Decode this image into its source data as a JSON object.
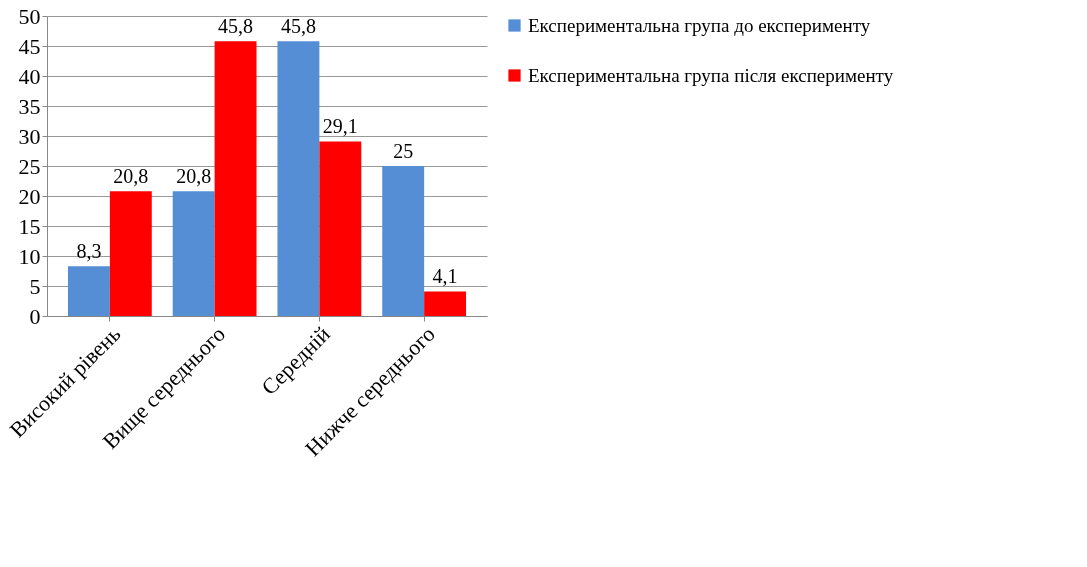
{
  "chart_data": {
    "type": "bar",
    "categories": [
      "Високий рівень",
      "Вище середнього",
      "Середній",
      "Нижче середнього"
    ],
    "series": [
      {
        "name": "Експериментальна група до експерименту",
        "color": "#558ed5",
        "values": [
          8.3,
          20.8,
          45.8,
          25
        ],
        "value_labels": [
          "8,3",
          "20,8",
          "45,8",
          "25"
        ]
      },
      {
        "name": "Експериментальна група після експерименту",
        "color": "#ff0000",
        "values": [
          20.8,
          45.8,
          29.1,
          4.1
        ],
        "value_labels": [
          "20,8",
          "45,8",
          "29,1",
          "4,1"
        ]
      }
    ],
    "ylim": [
      0,
      50
    ],
    "yticks": [
      0,
      5,
      10,
      15,
      20,
      25,
      30,
      35,
      40,
      45,
      50
    ],
    "grid": "y",
    "legend": "right"
  }
}
